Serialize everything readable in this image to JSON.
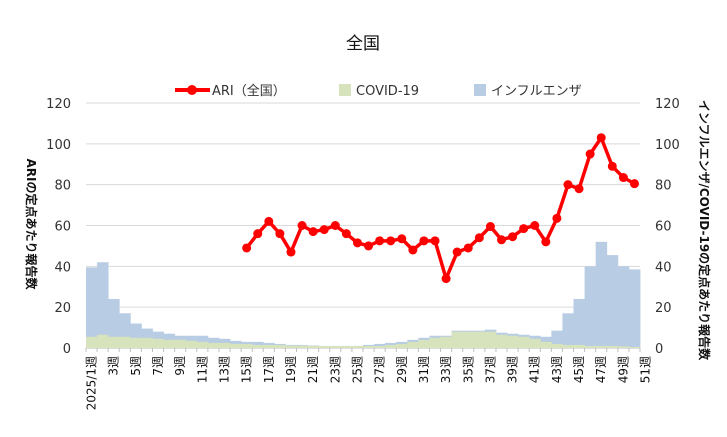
{
  "chart_data": {
    "type": "combo-area-line",
    "title": "全国",
    "ylabel_left": "ARIの定点あたり報告数",
    "ylabel_right": "インフルエンザ/COVID-19の定点あたり報告数",
    "ylim_left": [
      0,
      120
    ],
    "ylim_right": [
      0,
      120
    ],
    "yticks": [
      0,
      20,
      40,
      60,
      80,
      100,
      120
    ],
    "weeks": [
      1,
      2,
      3,
      4,
      5,
      6,
      7,
      8,
      9,
      10,
      11,
      12,
      13,
      14,
      15,
      16,
      17,
      18,
      19,
      20,
      21,
      22,
      23,
      24,
      25,
      26,
      27,
      28,
      29,
      30,
      31,
      32,
      33,
      34,
      35,
      36,
      37,
      38,
      39,
      40,
      41,
      42,
      43,
      44,
      45,
      46,
      47,
      48,
      49,
      50
    ],
    "xtick_labels": [
      {
        "week": 1,
        "label": "2025/1週"
      },
      {
        "week": 3,
        "label": "3週"
      },
      {
        "week": 5,
        "label": "5週"
      },
      {
        "week": 7,
        "label": "7週"
      },
      {
        "week": 9,
        "label": "9週"
      },
      {
        "week": 11,
        "label": "11週"
      },
      {
        "week": 13,
        "label": "13週"
      },
      {
        "week": 15,
        "label": "15週"
      },
      {
        "week": 17,
        "label": "17週"
      },
      {
        "week": 19,
        "label": "19週"
      },
      {
        "week": 21,
        "label": "21週"
      },
      {
        "week": 23,
        "label": "23週"
      },
      {
        "week": 25,
        "label": "25週"
      },
      {
        "week": 27,
        "label": "27週"
      },
      {
        "week": 29,
        "label": "29週"
      },
      {
        "week": 31,
        "label": "31週"
      },
      {
        "week": 33,
        "label": "33週"
      },
      {
        "week": 35,
        "label": "35週"
      },
      {
        "week": 37,
        "label": "37週"
      },
      {
        "week": 39,
        "label": "39週"
      },
      {
        "week": 41,
        "label": "41週"
      },
      {
        "week": 43,
        "label": "43週"
      },
      {
        "week": 45,
        "label": "45週"
      },
      {
        "week": 47,
        "label": "47週"
      },
      {
        "week": 49,
        "label": "49週"
      },
      {
        "week": 51,
        "label": "51週"
      }
    ],
    "series": [
      {
        "name": "インフルエンザ",
        "kind": "area",
        "axis": "right",
        "color": "#b8cce4",
        "values": [
          39.5,
          42,
          24,
          17,
          12,
          9.5,
          8,
          7,
          6,
          6,
          6,
          5,
          4.5,
          3.5,
          3,
          3,
          2.5,
          2,
          1.5,
          1.5,
          1.2,
          1,
          1,
          1,
          1,
          1.5,
          2,
          2.5,
          3,
          4,
          5,
          6,
          6,
          8.5,
          8.5,
          8.5,
          9,
          7.5,
          7,
          6.5,
          6,
          5.5,
          8.5,
          17,
          24,
          40,
          52,
          45.5,
          40,
          38.5
        ]
      },
      {
        "name": "COVID-19",
        "kind": "area",
        "axis": "right",
        "color": "#d6e3bc",
        "values": [
          5.5,
          6.5,
          5.5,
          5.5,
          5,
          5,
          4.5,
          4,
          4,
          3.5,
          3,
          2.5,
          2.5,
          2,
          2,
          1.5,
          1.5,
          1.5,
          1.2,
          1.2,
          1,
          1,
          1,
          1,
          1,
          1,
          1,
          1.5,
          2,
          3,
          4,
          5,
          5.5,
          8,
          8,
          8,
          8,
          6.5,
          6,
          5.5,
          4.5,
          3,
          2,
          1.5,
          1.5,
          1,
          1,
          1,
          0.8,
          0.5
        ]
      },
      {
        "name": "ARI（全国）",
        "kind": "line",
        "axis": "left",
        "color": "#ff0000",
        "start_week": 15,
        "values": [
          49,
          56,
          62,
          56,
          47,
          60,
          57,
          58,
          60,
          56,
          51.5,
          50,
          52.5,
          52.5,
          53.5,
          48,
          52.5,
          52.5,
          34,
          47,
          49,
          54,
          59.5,
          53,
          54.5,
          58.5,
          60,
          52,
          63.5,
          80,
          78,
          95,
          103,
          89,
          83.5,
          80.5
        ]
      }
    ],
    "legend": [
      {
        "name": "ARI（全国）",
        "kind": "line"
      },
      {
        "name": "COVID-19",
        "kind": "area"
      },
      {
        "name": "インフルエンザ",
        "kind": "area"
      }
    ]
  }
}
